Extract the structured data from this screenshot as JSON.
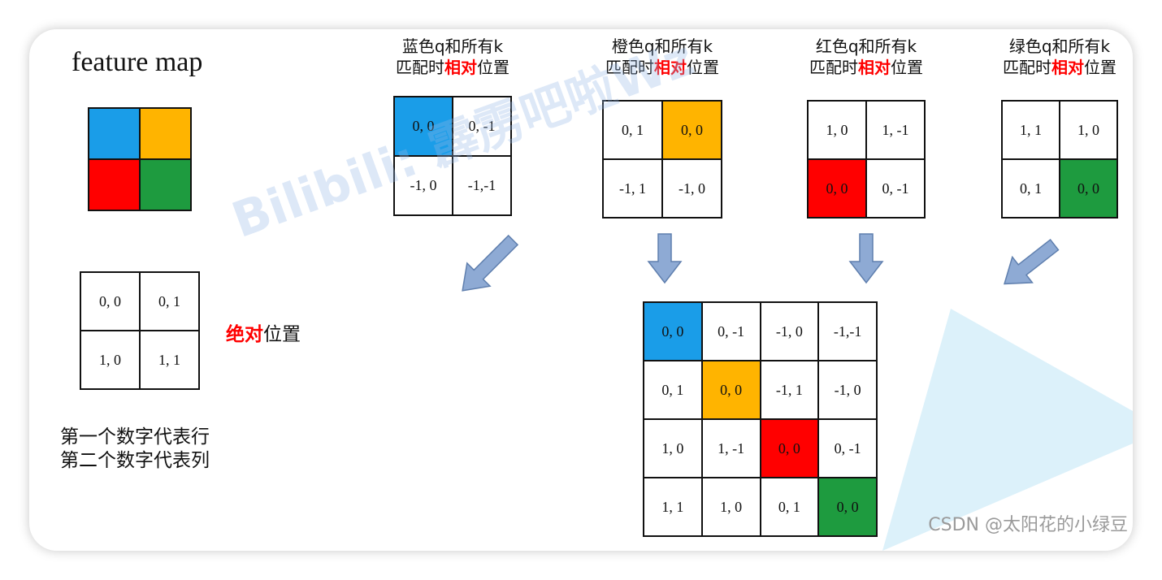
{
  "colors": {
    "blue": "#1a9de8",
    "orange": "#ffb400",
    "red": "#ff0000",
    "green": "#1e9b3f",
    "arrow_fill": "#8eaad4",
    "arrow_stroke": "#5f7fae",
    "triangle": "#dcf1fa"
  },
  "feature_map": {
    "title": "feature map",
    "colors": [
      [
        "#1a9de8",
        "#ffb400"
      ],
      [
        "#ff0000",
        "#1e9b3f"
      ]
    ]
  },
  "absolute": {
    "cells": [
      [
        "0, 0",
        "0, 1"
      ],
      [
        "1, 0",
        "1, 1"
      ]
    ],
    "label_red": "绝对",
    "label_rest": "位置"
  },
  "note": {
    "line1": "第一个数字代表行",
    "line2": "第二个数字代表列"
  },
  "relative": [
    {
      "head1": "蓝色q和所有k",
      "head2_pre": "匹配时",
      "head2_red": "相对",
      "head2_post": "位置",
      "cells": [
        [
          "0, 0",
          "0, -1"
        ],
        [
          "-1, 0",
          "-1,-1"
        ]
      ],
      "hl": [
        0,
        0
      ],
      "hl_color": "#1a9de8"
    },
    {
      "head1": "橙色q和所有k",
      "head2_pre": "匹配时",
      "head2_red": "相对",
      "head2_post": "位置",
      "cells": [
        [
          "0, 1",
          "0, 0"
        ],
        [
          "-1, 1",
          "-1, 0"
        ]
      ],
      "hl": [
        0,
        1
      ],
      "hl_color": "#ffb400"
    },
    {
      "head1": "红色q和所有k",
      "head2_pre": "匹配时",
      "head2_red": "相对",
      "head2_post": "位置",
      "cells": [
        [
          "1, 0",
          "1, -1"
        ],
        [
          "0, 0",
          "0, -1"
        ]
      ],
      "hl": [
        1,
        0
      ],
      "hl_color": "#ff0000"
    },
    {
      "head1": "绿色q和所有k",
      "head2_pre": "匹配时",
      "head2_red": "相对",
      "head2_post": "位置",
      "cells": [
        [
          "1, 1",
          "1, 0"
        ],
        [
          "0, 1",
          "0, 0"
        ]
      ],
      "hl": [
        1,
        1
      ],
      "hl_color": "#1e9b3f"
    }
  ],
  "combined": {
    "cells": [
      [
        "0, 0",
        "0, -1",
        "-1, 0",
        "-1,-1"
      ],
      [
        "0, 1",
        "0, 0",
        "-1, 1",
        "-1, 0"
      ],
      [
        "1, 0",
        "1, -1",
        "0, 0",
        "0, -1"
      ],
      [
        "1, 1",
        "1, 0",
        "0, 1",
        "0, 0"
      ]
    ],
    "highlights": [
      {
        "r": 0,
        "c": 0,
        "color": "#1a9de8"
      },
      {
        "r": 1,
        "c": 1,
        "color": "#ffb400"
      },
      {
        "r": 2,
        "c": 2,
        "color": "#ff0000"
      },
      {
        "r": 3,
        "c": 3,
        "color": "#1e9b3f"
      }
    ]
  },
  "watermark": "Bilibili: 霹雳吧啦Wz",
  "csdn": "CSDN @太阳花的小绿豆"
}
